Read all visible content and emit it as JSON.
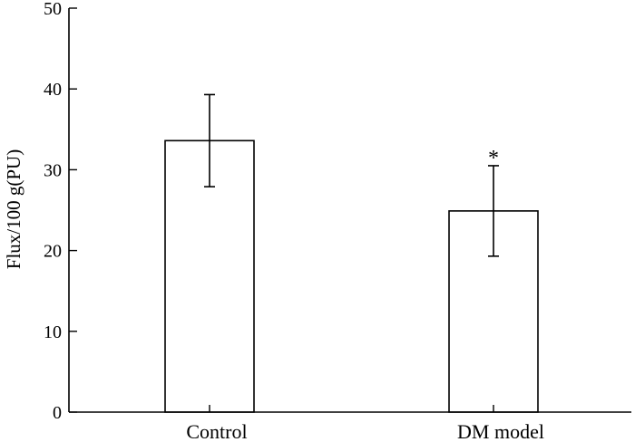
{
  "chart_data": {
    "type": "bar",
    "title": "",
    "xlabel": "",
    "ylabel": "Flux/100 g(PU)",
    "ylim": [
      0,
      50
    ],
    "yticks": [
      0,
      10,
      20,
      30,
      40,
      50
    ],
    "categories": [
      "Control",
      "DM model"
    ],
    "values": [
      33.6,
      24.9
    ],
    "errors": [
      5.7,
      5.6
    ],
    "annotations": [
      "",
      "*"
    ],
    "grid": false,
    "legend": "none"
  },
  "colors": {
    "bar_fill": "#ffffff",
    "stroke": "#000000"
  }
}
